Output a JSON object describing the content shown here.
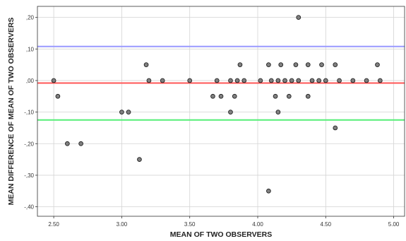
{
  "chart_data": {
    "type": "scatter",
    "title": "",
    "xlabel": "MEAN OF TWO OBSERVERS",
    "ylabel": "MEAN DIFFERENCE OF MEAN OF TWO OBSERVERS",
    "xlim": [
      2.38,
      5.08
    ],
    "ylim": [
      -0.43,
      0.235
    ],
    "x_ticks": [
      2.5,
      3.0,
      3.5,
      4.0,
      4.5,
      5.0
    ],
    "x_tick_labels": [
      "2.50",
      "3.00",
      "3.50",
      "4.00",
      "4.50",
      "5.00"
    ],
    "y_ticks": [
      0.2,
      0.1,
      0.0,
      -0.1,
      -0.2,
      -0.3,
      -0.4
    ],
    "y_tick_labels": [
      ",20",
      ",10",
      ",00",
      "-,10",
      "-,20",
      "-,30",
      "-,40"
    ],
    "grid": true,
    "reference_lines": [
      {
        "y": 0.108,
        "color": "#9999ff"
      },
      {
        "y": -0.008,
        "color": "#ff5555"
      },
      {
        "y": -0.125,
        "color": "#55ee77"
      }
    ],
    "series": [
      {
        "marker_color": "#808080",
        "points": [
          [
            2.5,
            0.0
          ],
          [
            2.53,
            -0.05
          ],
          [
            2.6,
            -0.2
          ],
          [
            2.7,
            -0.2
          ],
          [
            3.0,
            -0.1
          ],
          [
            3.05,
            -0.1
          ],
          [
            3.13,
            -0.25
          ],
          [
            3.18,
            0.05
          ],
          [
            3.2,
            0.0
          ],
          [
            3.3,
            0.0
          ],
          [
            3.5,
            0.0
          ],
          [
            3.67,
            -0.05
          ],
          [
            3.7,
            0.0
          ],
          [
            3.73,
            -0.05
          ],
          [
            3.8,
            0.0
          ],
          [
            3.8,
            -0.1
          ],
          [
            3.83,
            -0.05
          ],
          [
            3.85,
            0.0
          ],
          [
            3.87,
            0.05
          ],
          [
            3.9,
            0.0
          ],
          [
            4.02,
            0.0
          ],
          [
            4.08,
            0.05
          ],
          [
            4.08,
            -0.35
          ],
          [
            4.1,
            0.0
          ],
          [
            4.13,
            -0.05
          ],
          [
            4.15,
            0.0
          ],
          [
            4.15,
            -0.1
          ],
          [
            4.17,
            0.05
          ],
          [
            4.2,
            0.0
          ],
          [
            4.23,
            -0.05
          ],
          [
            4.25,
            0.0
          ],
          [
            4.28,
            0.05
          ],
          [
            4.3,
            0.2
          ],
          [
            4.3,
            0.0
          ],
          [
            4.37,
            0.05
          ],
          [
            4.37,
            -0.05
          ],
          [
            4.4,
            0.0
          ],
          [
            4.45,
            0.0
          ],
          [
            4.47,
            0.05
          ],
          [
            4.5,
            0.0
          ],
          [
            4.57,
            0.05
          ],
          [
            4.57,
            -0.15
          ],
          [
            4.6,
            0.0
          ],
          [
            4.7,
            0.0
          ],
          [
            4.8,
            0.0
          ],
          [
            4.88,
            0.05
          ],
          [
            4.9,
            0.0
          ]
        ]
      }
    ]
  }
}
